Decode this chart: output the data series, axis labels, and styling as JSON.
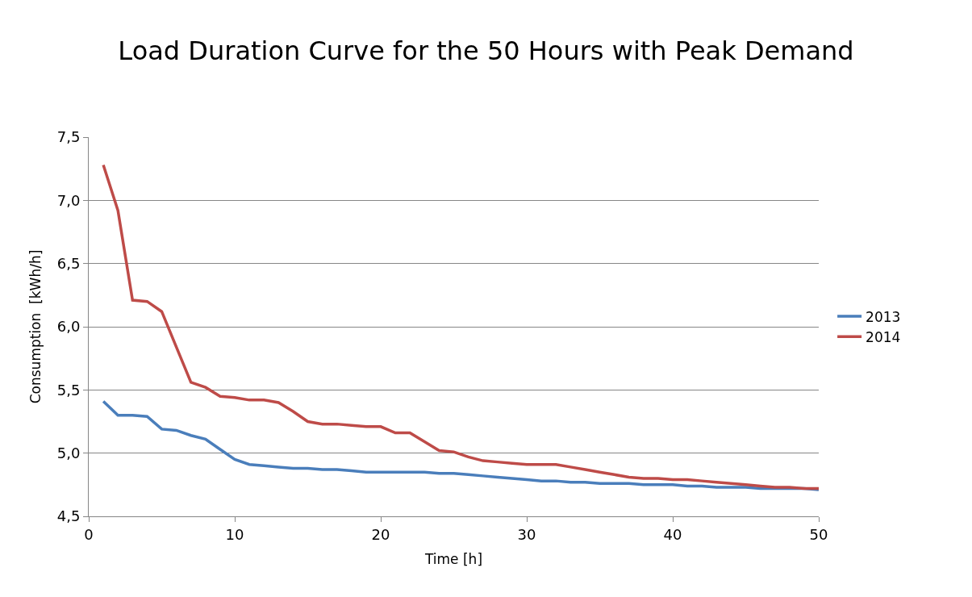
{
  "chart_data": {
    "type": "line",
    "title": "Load Duration Curve for the 50 Hours with Peak Demand",
    "xlabel": "Time [h]",
    "ylabel": "Consumption  [kWh/h]",
    "x": [
      1,
      2,
      3,
      4,
      5,
      6,
      7,
      8,
      9,
      10,
      11,
      12,
      13,
      14,
      15,
      16,
      17,
      18,
      19,
      20,
      21,
      22,
      23,
      24,
      25,
      26,
      27,
      28,
      29,
      30,
      31,
      32,
      33,
      34,
      35,
      36,
      37,
      38,
      39,
      40,
      41,
      42,
      43,
      44,
      45,
      46,
      47,
      48,
      49,
      50
    ],
    "series": [
      {
        "name": "2013",
        "color": "#4a7ebb",
        "values": [
          5.41,
          5.3,
          5.3,
          5.29,
          5.19,
          5.18,
          5.14,
          5.11,
          5.03,
          4.95,
          4.91,
          4.9,
          4.89,
          4.88,
          4.88,
          4.87,
          4.87,
          4.86,
          4.85,
          4.85,
          4.85,
          4.85,
          4.85,
          4.84,
          4.84,
          4.83,
          4.82,
          4.81,
          4.8,
          4.79,
          4.78,
          4.78,
          4.77,
          4.77,
          4.76,
          4.76,
          4.76,
          4.75,
          4.75,
          4.75,
          4.74,
          4.74,
          4.73,
          4.73,
          4.73,
          4.72,
          4.72,
          4.72,
          4.72,
          4.71
        ]
      },
      {
        "name": "2014",
        "color": "#be4b48",
        "values": [
          7.28,
          6.92,
          6.21,
          6.2,
          6.12,
          5.84,
          5.56,
          5.52,
          5.45,
          5.44,
          5.42,
          5.42,
          5.4,
          5.33,
          5.25,
          5.23,
          5.23,
          5.22,
          5.21,
          5.21,
          5.16,
          5.16,
          5.09,
          5.02,
          5.01,
          4.97,
          4.94,
          4.93,
          4.92,
          4.91,
          4.91,
          4.91,
          4.89,
          4.87,
          4.85,
          4.83,
          4.81,
          4.8,
          4.8,
          4.79,
          4.79,
          4.78,
          4.77,
          4.76,
          4.75,
          4.74,
          4.73,
          4.73,
          4.72,
          4.72
        ]
      }
    ],
    "xlim": [
      0,
      50
    ],
    "xticks": [
      0,
      10,
      20,
      30,
      40,
      50
    ],
    "ylim": [
      4.5,
      7.5
    ],
    "yticks": [
      {
        "value": 4.5,
        "label": "4,5"
      },
      {
        "value": 5.0,
        "label": "5,0"
      },
      {
        "value": 5.5,
        "label": "5,5"
      },
      {
        "value": 6.0,
        "label": "6,0"
      },
      {
        "value": 6.5,
        "label": "6,5"
      },
      {
        "value": 7.0,
        "label": "7,0"
      },
      {
        "value": 7.5,
        "label": "7,5"
      }
    ],
    "grid": "y",
    "legend": "right",
    "marker": "none",
    "line_style": "solid"
  }
}
